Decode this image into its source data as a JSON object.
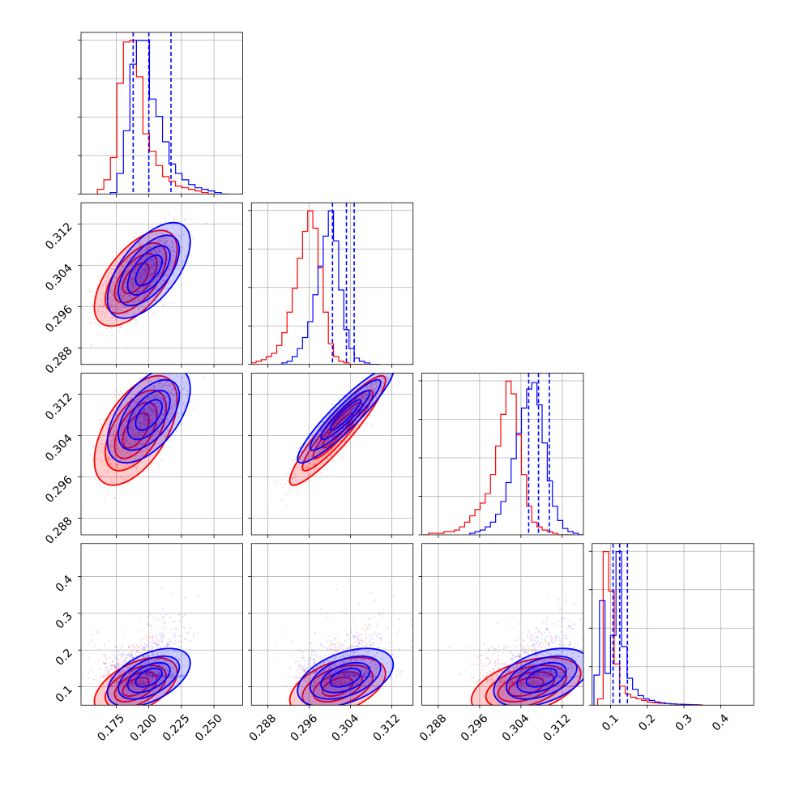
{
  "chart_data": {
    "type": "corner",
    "params": [
      {
        "range": [
          0.148,
          0.272
        ],
        "ticks": [
          0.175,
          0.2,
          0.225,
          0.25
        ],
        "labels": [
          "0.175",
          "0.200",
          "0.225",
          "0.250"
        ]
      },
      {
        "range": [
          0.2848,
          0.3161
        ],
        "ticks": [
          0.288,
          0.296,
          0.304,
          0.312
        ],
        "labels": [
          "0.288",
          "0.296",
          "0.304",
          "0.312"
        ]
      },
      {
        "range": [
          0.2848,
          0.3161
        ],
        "ticks": [
          0.288,
          0.296,
          0.304,
          0.312
        ],
        "labels": [
          "0.288",
          "0.296",
          "0.304",
          "0.312"
        ]
      },
      {
        "range": [
          0.05,
          0.49
        ],
        "ticks": [
          0.1,
          0.2,
          0.3,
          0.4
        ],
        "labels": [
          "0.1",
          "0.2",
          "0.3",
          "0.4"
        ]
      }
    ],
    "series": [
      {
        "color": "#ff0000",
        "mean": [
          0.19,
          0.3015,
          0.305,
          0.1
        ],
        "sd": [
          0.012,
          0.0035,
          0.004,
          0.03
        ],
        "hist": [
          {
            "edges": [
              0.1605,
              0.1655,
              0.1705,
              0.1755,
              0.1805,
              0.1855,
              0.1905,
              0.1955,
              0.2005,
              0.2055,
              0.2105,
              0.2155,
              0.2205,
              0.2255,
              0.2305,
              0.2355,
              0.2405,
              0.2455,
              0.2505
            ],
            "counts": [
              3,
              9,
              23,
              70,
              96,
              97,
              74,
              38,
              27,
              18,
              11,
              8,
              5,
              4,
              3,
              2,
              1,
              0
            ]
          },
          {
            "edges": [
              0.2847,
              0.2857,
              0.2867,
              0.2877,
              0.2887,
              0.2897,
              0.2907,
              0.2917,
              0.2927,
              0.2937,
              0.2947,
              0.2957,
              0.2967,
              0.2977,
              0.2987,
              0.2997,
              0.3007,
              0.3017,
              0.3027,
              0.3037,
              0.3047,
              0.3057,
              0.3067,
              0.3077
            ],
            "counts": [
              1,
              2,
              3,
              5,
              7,
              12,
              20,
              33,
              48,
              67,
              84,
              97,
              86,
              61,
              33,
              13,
              5,
              2,
              1,
              0,
              0,
              0,
              0
            ]
          },
          {
            "edges": [
              0.2851,
              0.2861,
              0.2871,
              0.2881,
              0.2891,
              0.2901,
              0.2911,
              0.2921,
              0.2931,
              0.2941,
              0.2951,
              0.2961,
              0.2971,
              0.2981,
              0.2991,
              0.3001,
              0.3011,
              0.3021,
              0.3031,
              0.3041,
              0.3051,
              0.3061,
              0.3071,
              0.3081,
              0.3091,
              0.3101,
              0.3111,
              0.3121,
              0.3131,
              0.3141
            ],
            "counts": [
              0,
              1,
              1,
              1,
              2,
              2,
              3,
              5,
              8,
              12,
              16,
              20,
              26,
              38,
              56,
              76,
              97,
              89,
              63,
              38,
              18,
              8,
              5,
              3,
              2,
              1,
              0,
              0,
              0
            ]
          },
          {
            "edges": [
              0.065,
              0.08,
              0.095,
              0.11,
              0.125,
              0.14,
              0.155,
              0.17,
              0.185,
              0.2,
              0.215,
              0.23,
              0.245,
              0.26,
              0.275,
              0.29,
              0.305,
              0.32,
              0.335,
              0.35
            ],
            "counts": [
              4,
              97,
              72,
              26,
              12,
              7,
              5,
              4,
              3,
              2,
              1.5,
              1.2,
              1,
              0.8,
              0.6,
              0.5,
              0.4,
              0.3,
              0.2
            ]
          }
        ]
      },
      {
        "color": "#0000ff",
        "mean": [
          0.2,
          0.303,
          0.308,
          0.125
        ],
        "sd": [
          0.012,
          0.0035,
          0.0035,
          0.03
        ],
        "hist": [
          {
            "edges": [
              0.1705,
              0.1755,
              0.1805,
              0.1855,
              0.1905,
              0.1955,
              0.2005,
              0.2055,
              0.2105,
              0.2155,
              0.2205,
              0.2255,
              0.2305,
              0.2355,
              0.2405,
              0.2455,
              0.2505,
              0.2555,
              0.2605
            ],
            "counts": [
              1,
              13,
              40,
              82,
              97,
              97,
              60,
              49,
              33,
              19,
              13,
              9,
              6,
              4,
              3,
              2,
              1,
              0
            ]
          },
          {
            "edges": [
              0.2907,
              0.2917,
              0.2927,
              0.2937,
              0.2947,
              0.2957,
              0.2967,
              0.2977,
              0.2987,
              0.2997,
              0.3007,
              0.3017,
              0.3027,
              0.3037,
              0.3047,
              0.3057,
              0.3067,
              0.3077,
              0.3087,
              0.3097
            ],
            "counts": [
              1,
              2,
              5,
              10,
              17,
              27,
              44,
              62,
              81,
              97,
              78,
              47,
              22,
              10,
              4,
              2,
              1,
              0,
              0
            ]
          },
          {
            "edges": [
              0.2941,
              0.2951,
              0.2961,
              0.2971,
              0.2981,
              0.2991,
              0.3001,
              0.3011,
              0.3021,
              0.3031,
              0.3041,
              0.3051,
              0.3061,
              0.3071,
              0.3081,
              0.3091,
              0.3101,
              0.3111,
              0.3121,
              0.3131,
              0.3141,
              0.3151,
              0.3161
            ],
            "counts": [
              1,
              2,
              3,
              5,
              8,
              13,
              21,
              33,
              48,
              64,
              80,
              92,
              96,
              82,
              58,
              34,
              18,
              9,
              4,
              2,
              1,
              0
            ]
          },
          {
            "edges": [
              0.055,
              0.07,
              0.085,
              0.1,
              0.115,
              0.13,
              0.145,
              0.16,
              0.175,
              0.19,
              0.205,
              0.22,
              0.235,
              0.25,
              0.265,
              0.28,
              0.295,
              0.31,
              0.325,
              0.34
            ],
            "counts": [
              19,
              66,
              20,
              44,
              97,
              37,
              17,
              10,
              6,
              4,
              3,
              2,
              1.5,
              1,
              0.8,
              0.6,
              0.4,
              0.3,
              0.2
            ]
          }
        ]
      }
    ],
    "quantiles": {
      "color": "#0000ff",
      "linestyle": "dashed",
      "values": [
        [
          0.188,
          0.2,
          0.217
        ],
        [
          0.3005,
          0.3032,
          0.3047
        ],
        [
          0.3055,
          0.3074,
          0.3095
        ],
        [
          0.107,
          0.125,
          0.146
        ]
      ]
    },
    "contour_levels": [
      0.3,
      0.6,
      0.85,
      0.97
    ],
    "axis_label_rotation_deg": 45,
    "grid": true
  }
}
